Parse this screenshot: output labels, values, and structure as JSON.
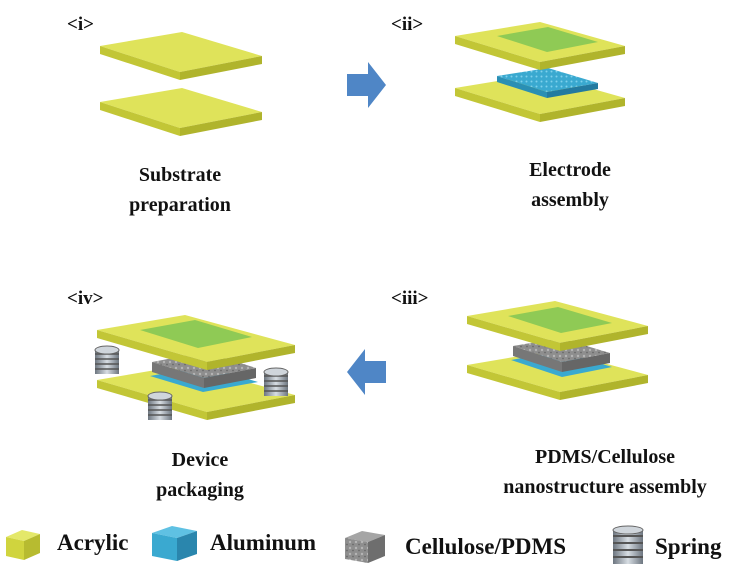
{
  "steps": [
    {
      "label": "<i>",
      "caption_line1": "Substrate",
      "caption_line2": "preparation"
    },
    {
      "label": "<ii>",
      "caption_line1": "Electrode",
      "caption_line2": "assembly"
    },
    {
      "label": "<iii>",
      "caption_line1": "PDMS/Cellulose",
      "caption_line2": "nanostructure assembly"
    },
    {
      "label": "<iv>",
      "caption_line1": "Device",
      "caption_line2": "packaging"
    }
  ],
  "legend": [
    {
      "label": "Acrylic",
      "icon": "acrylic-block-icon",
      "color": "#d8dc4a"
    },
    {
      "label": "Aluminum",
      "icon": "aluminum-block-icon",
      "color": "#3aa9d0"
    },
    {
      "label": "Cellulose/PDMS",
      "icon": "cellulose-block-icon",
      "color": "#8a8a8a"
    },
    {
      "label": "Spring",
      "icon": "spring-icon",
      "color": "#9aa3ad"
    }
  ],
  "colors": {
    "acrylic_top": "#dfe35a",
    "acrylic_side": "#c2c636",
    "electrode_top": "#8fca55",
    "aluminum": "#3aa9d0",
    "cellulose": "#8e8e8e",
    "arrow": "#4f86c6"
  }
}
